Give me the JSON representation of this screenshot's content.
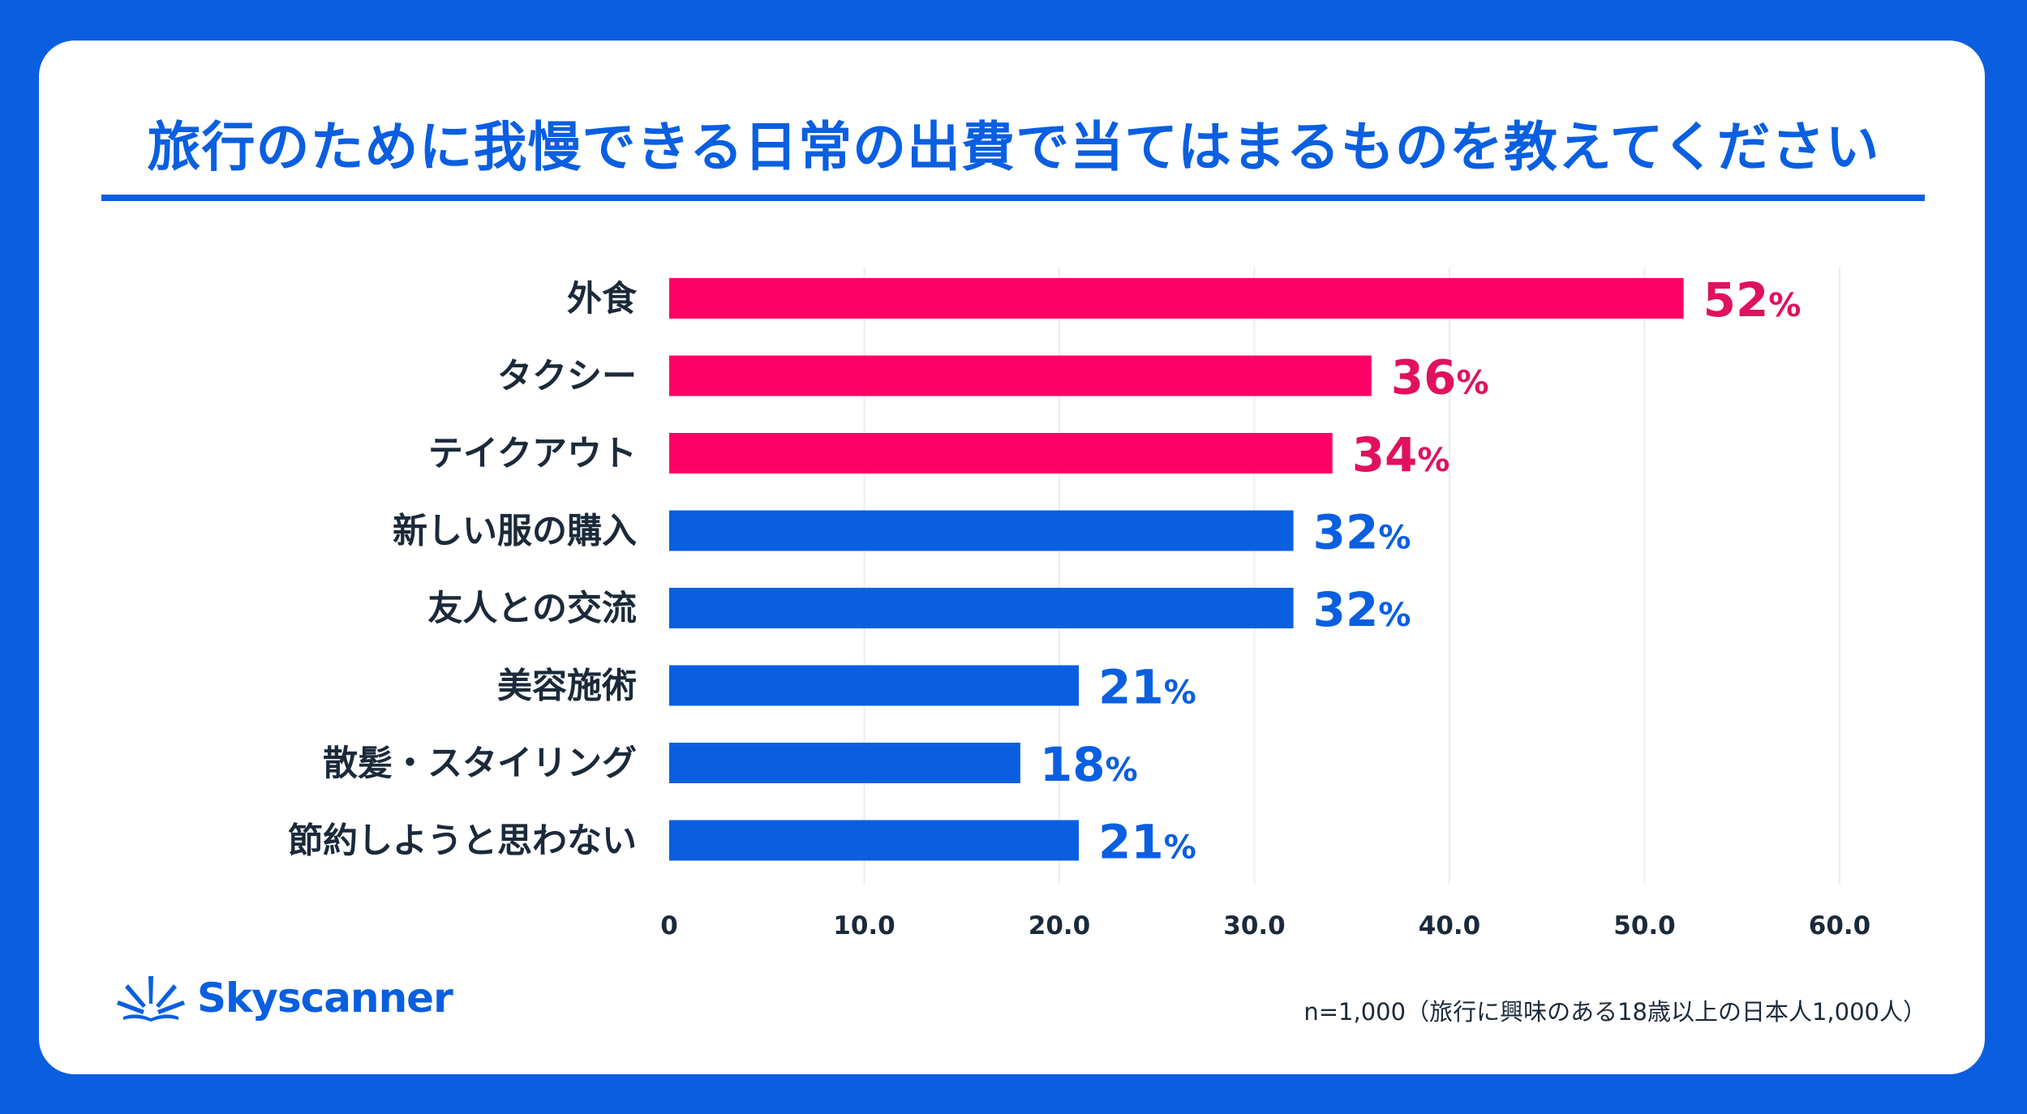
{
  "title": "旅行のために我慢できる日常の出費で当てはまるものを教えてください",
  "brand": {
    "name": "Skyscanner",
    "color": "#0a5fe0"
  },
  "footnote": "n=1,000（旅行に興味のある18歳以上の日本人1,000人）",
  "colors": {
    "highlight": "#ff0066",
    "highlight_label": "#e0115f",
    "primary": "#0a5fe0",
    "label": "#1b2a3a",
    "grid": "#e8efee"
  },
  "chart_data": {
    "type": "bar",
    "orientation": "horizontal",
    "categories": [
      "外食",
      "タクシー",
      "テイクアウト",
      "新しい服の購入",
      "友人との交流",
      "美容施術",
      "散髪・スタイリング",
      "節約しようと思わない"
    ],
    "values": [
      52,
      36,
      34,
      32,
      32,
      21,
      18,
      21
    ],
    "display_values": [
      "52",
      "36",
      "34",
      "32",
      "32",
      "21",
      "18",
      "21"
    ],
    "value_suffix": "%",
    "highlighted": [
      true,
      true,
      true,
      false,
      false,
      false,
      false,
      false
    ],
    "xlim": [
      0,
      60
    ],
    "xticks": [
      0,
      10,
      20,
      30,
      40,
      50,
      60
    ],
    "xtick_labels": [
      "0",
      "10.0",
      "20.0",
      "30.0",
      "40.0",
      "50.0",
      "60.0"
    ],
    "grid": true,
    "xlabel": "",
    "ylabel": "",
    "title": "旅行のために我慢できる日常の出費で当てはまるものを教えてください"
  }
}
